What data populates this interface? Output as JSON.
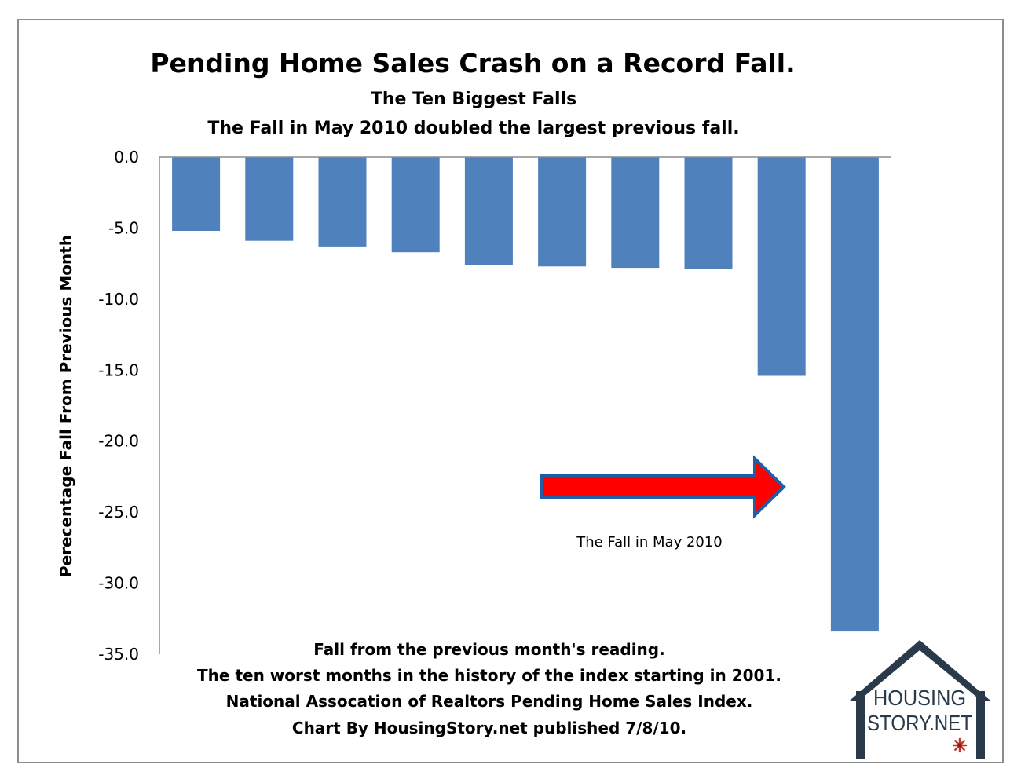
{
  "chart_data": {
    "type": "bar",
    "title": "Pending Home Sales Crash on a Record Fall.",
    "subtitle": [
      "The Ten Biggest Falls",
      "The Fall in May 2010 doubled the largest previous fall."
    ],
    "xlabel": "",
    "ylabel": "Perecentage Fall From Previous Month",
    "ylim": [
      -35,
      0
    ],
    "yticks": [
      0,
      -5,
      -10,
      -15,
      -20,
      -25,
      -30,
      -35
    ],
    "ytick_labels": [
      "0.0",
      "-5.0",
      "-10.0",
      "-15.0",
      "-20.0",
      "-25.0",
      "-30.0",
      "-35.0"
    ],
    "values": [
      -5.2,
      -5.9,
      -6.3,
      -6.7,
      -7.6,
      -7.7,
      -7.8,
      -7.9,
      -15.4,
      -33.4
    ],
    "bar_color": "#4f81bd",
    "grid": false,
    "annotation": {
      "text": "The Fall in May 2010",
      "arrow_color": "#ff0000",
      "arrow_outline": "#1f5fa8"
    },
    "notes": [
      "Fall from the previous month's reading.",
      "The ten worst months in the history of the index starting in 2001.",
      "National Assocation of Realtors Pending Home Sales Index.",
      "Chart By HousingStory.net published 7/8/10."
    ]
  },
  "logo": {
    "line1": "HOUSING",
    "line2": "STORY.NET",
    "color": "#2b3a4a",
    "flower_color": "#c0392b"
  }
}
